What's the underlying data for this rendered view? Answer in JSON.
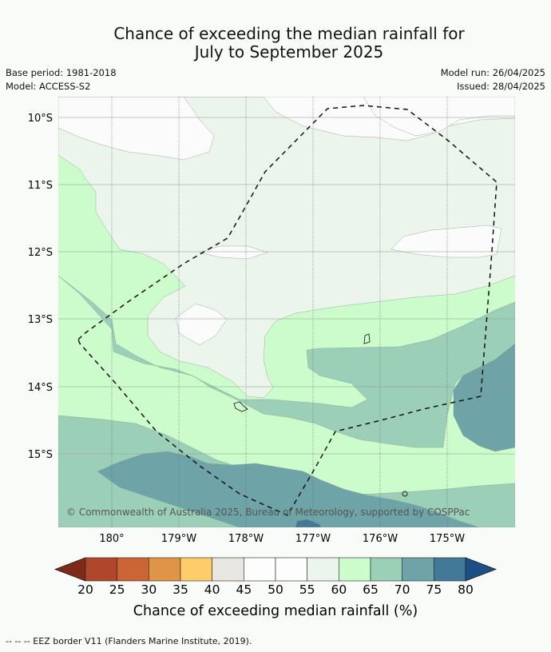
{
  "title_line1": "Chance of exceeding the median rainfall for",
  "title_line2": "July to September 2025",
  "meta": {
    "base_period": "Base period: 1981-2018",
    "model": "Model: ACCESS-S2",
    "model_run": "Model run: 26/04/2025",
    "issued": "Issued: 28/04/2025"
  },
  "axes": {
    "lat_ticks": [
      "10°S",
      "11°S",
      "12°S",
      "13°S",
      "14°S",
      "15°S"
    ],
    "lon_ticks": [
      "180°",
      "179°W",
      "178°W",
      "177°W",
      "176°W",
      "175°W"
    ]
  },
  "copyright": "© Commonwealth of Australia 2025, Bureau of Meteorology, supported by COSPPac",
  "colorbar": {
    "ticks": [
      "20",
      "25",
      "30",
      "35",
      "40",
      "45",
      "50",
      "55",
      "60",
      "65",
      "70",
      "75",
      "80"
    ],
    "colors": [
      "#7d2a1a",
      "#b0472a",
      "#cc6535",
      "#e09447",
      "#fecd6a",
      "#e8e6e1",
      "#fcfdfc",
      "#fcfdfc",
      "#ecf5ec",
      "#ccfccc",
      "#9ccfb8",
      "#6ea3a8",
      "#417996",
      "#1b4f86"
    ],
    "title": "Chance of exceeding median rainfall (%)"
  },
  "map_colors": {
    "c45": "#fafbfa",
    "c55": "#ebf5eb",
    "c60": "#ccfccc",
    "c65": "#9ccfb8",
    "c70": "#6ea3a8",
    "c75": "#417996"
  },
  "footer": "--  --  -- EEZ border V11 (Flanders Marine Institute, 2019)."
}
